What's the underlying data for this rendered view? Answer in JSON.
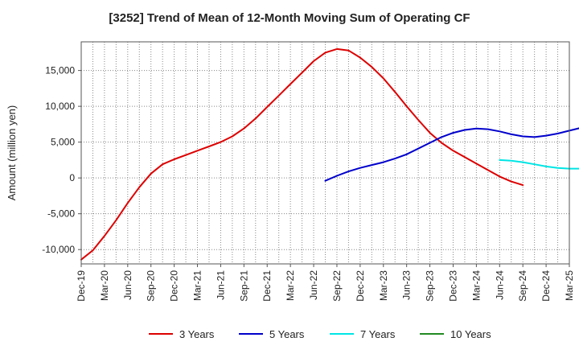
{
  "chart_data": {
    "type": "line",
    "title": "[3252]  Trend of Mean of 12-Month Moving Sum of Operating CF",
    "xlabel": "",
    "ylabel": "Amount (million yen)",
    "ylim": [
      -12000,
      19000
    ],
    "yticks": [
      -10000,
      -5000,
      0,
      5000,
      10000,
      15000
    ],
    "ytick_labels": [
      "-10,000",
      "-5,000",
      "0",
      "5,000",
      "10,000",
      "15,000"
    ],
    "xticks": [
      "Dec-19",
      "Mar-20",
      "Jun-20",
      "Sep-20",
      "Dec-20",
      "Mar-21",
      "Jun-21",
      "Sep-21",
      "Dec-21",
      "Mar-22",
      "Jun-22",
      "Sep-22",
      "Dec-22",
      "Mar-23",
      "Jun-23",
      "Sep-23",
      "Dec-23",
      "Mar-24",
      "Jun-24",
      "Sep-24",
      "Dec-24",
      "Mar-25"
    ],
    "grid": true,
    "legend_position": "bottom",
    "series": [
      {
        "name": "3 Years",
        "color": "#dd0000",
        "points": [
          [
            0,
            -11400
          ],
          [
            1,
            -10100
          ],
          [
            2,
            -8100
          ],
          [
            3,
            -5900
          ],
          [
            4,
            -3500
          ],
          [
            5,
            -1300
          ],
          [
            6,
            600
          ],
          [
            7,
            1900
          ],
          [
            8,
            2600
          ],
          [
            9,
            3200
          ],
          [
            10,
            3800
          ],
          [
            11,
            4400
          ],
          [
            12,
            5000
          ],
          [
            13,
            5800
          ],
          [
            14,
            6900
          ],
          [
            15,
            8300
          ],
          [
            16,
            9900
          ],
          [
            17,
            11500
          ],
          [
            18,
            13100
          ],
          [
            19,
            14700
          ],
          [
            20,
            16300
          ],
          [
            21,
            17500
          ],
          [
            22,
            18000
          ],
          [
            23,
            17800
          ],
          [
            24,
            16800
          ],
          [
            25,
            15500
          ],
          [
            26,
            13900
          ],
          [
            27,
            12000
          ],
          [
            28,
            10000
          ],
          [
            29,
            8100
          ],
          [
            30,
            6300
          ],
          [
            31,
            4900
          ],
          [
            32,
            3800
          ],
          [
            33,
            2900
          ],
          [
            34,
            2000
          ],
          [
            35,
            1100
          ],
          [
            36,
            200
          ],
          [
            37,
            -500
          ],
          [
            38,
            -1000
          ]
        ]
      },
      {
        "name": "5 Years",
        "color": "#0000cc",
        "points": [
          [
            21,
            -400
          ],
          [
            22,
            300
          ],
          [
            23,
            900
          ],
          [
            24,
            1400
          ],
          [
            25,
            1800
          ],
          [
            26,
            2200
          ],
          [
            27,
            2700
          ],
          [
            28,
            3300
          ],
          [
            29,
            4100
          ],
          [
            30,
            4900
          ],
          [
            31,
            5700
          ],
          [
            32,
            6300
          ],
          [
            33,
            6700
          ],
          [
            34,
            6900
          ],
          [
            35,
            6800
          ],
          [
            36,
            6500
          ],
          [
            37,
            6100
          ],
          [
            38,
            5800
          ],
          [
            39,
            5700
          ],
          [
            40,
            5900
          ],
          [
            41,
            6200
          ],
          [
            42,
            6600
          ],
          [
            43,
            7000
          ],
          [
            44,
            7400
          ],
          [
            45,
            7500
          ],
          [
            46,
            7300
          ]
        ]
      },
      {
        "name": "7 Years",
        "color": "#00e5e5",
        "points": [
          [
            36,
            2500
          ],
          [
            37,
            2400
          ],
          [
            38,
            2200
          ],
          [
            39,
            1900
          ],
          [
            40,
            1600
          ],
          [
            41,
            1400
          ],
          [
            42,
            1300
          ],
          [
            43,
            1300
          ],
          [
            44,
            1400
          ],
          [
            45,
            1600
          ],
          [
            46,
            1700
          ]
        ]
      },
      {
        "name": "10 Years",
        "color": "#228B22",
        "points": []
      }
    ]
  }
}
